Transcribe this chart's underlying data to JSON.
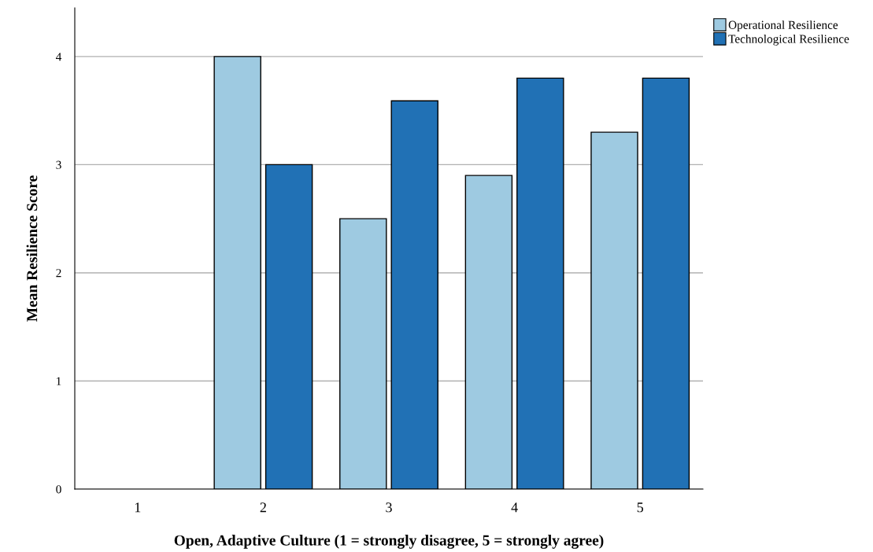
{
  "chart_data": {
    "type": "bar",
    "xlabel": "Open, Adaptive Culture (1 = strongly disagree, 5 = strongly agree)",
    "ylabel": "Mean Resilience Score",
    "categories": [
      "1",
      "2",
      "3",
      "4",
      "5"
    ],
    "series": [
      {
        "name": "Operational Resilience",
        "color": "#9ecae1",
        "values": [
          null,
          4.0,
          2.5,
          2.9,
          3.3
        ]
      },
      {
        "name": "Technological Resilience",
        "color": "#2171b5",
        "values": [
          null,
          3.0,
          3.59,
          3.8,
          3.8
        ]
      }
    ],
    "ylim": [
      0,
      4.45
    ],
    "yticks": [
      0,
      1,
      2,
      3,
      4
    ],
    "grid": "y",
    "legend": "top right"
  }
}
